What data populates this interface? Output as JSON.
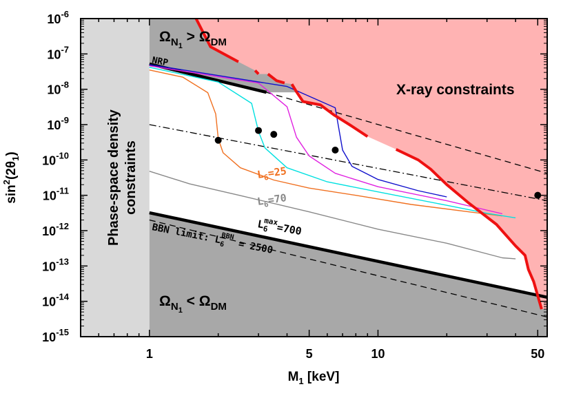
{
  "chart_data": {
    "type": "line",
    "title": "",
    "xlabel": "M",
    "xlabel_sub": "1",
    "xlabel_unit": " [keV]",
    "ylabel_base": "sin",
    "ylabel_sup": "2",
    "ylabel_arg_open": "(2θ",
    "ylabel_arg_sub": "1",
    "ylabel_arg_close": ")",
    "xscale": "log",
    "yscale": "log",
    "xlim": [
      0.5,
      55
    ],
    "ylim": [
      1e-15,
      1e-06
    ],
    "x_ticks": [
      {
        "value": 1,
        "label": "1"
      },
      {
        "value": 5,
        "label": "5"
      },
      {
        "value": 10,
        "label": "10"
      },
      {
        "value": 50,
        "label": "50"
      }
    ],
    "y_ticks": [
      {
        "value": 1e-06,
        "base": "10",
        "exp": "-6"
      },
      {
        "value": 1e-07,
        "base": "10",
        "exp": "-7"
      },
      {
        "value": 1e-08,
        "base": "10",
        "exp": "-8"
      },
      {
        "value": 1e-09,
        "base": "10",
        "exp": "-9"
      },
      {
        "value": 1e-10,
        "base": "10",
        "exp": "-10"
      },
      {
        "value": 1e-11,
        "base": "10",
        "exp": "-11"
      },
      {
        "value": 1e-12,
        "base": "10",
        "exp": "-12"
      },
      {
        "value": 1e-13,
        "base": "10",
        "exp": "-13"
      },
      {
        "value": 1e-14,
        "base": "10",
        "exp": "-14"
      },
      {
        "value": 1e-15,
        "base": "10",
        "exp": "-15"
      }
    ],
    "colors": {
      "xray": "#ffb3b3",
      "xray_edge": "#ee1111",
      "excluded": "#a8a8a8",
      "phase_space": "#d9d9d9",
      "L25": "#f07020",
      "L70": "#888888",
      "cyan": "#00e0e0",
      "magenta": "#e020e0",
      "blue": "#1010cc"
    },
    "regions": {
      "phase_space": {
        "label_line1": "Phase-space density",
        "label_line2": "constraints",
        "x_range": [
          0.5,
          1
        ]
      },
      "overproduction": {
        "label_base": "Ω",
        "label_sub": "N",
        "label_subsub": "1",
        "label_rel": " > ",
        "label_dm_base": "Ω",
        "label_dm_sub": "DM"
      },
      "underproduction": {
        "label_base": "Ω",
        "label_sub": "N",
        "label_subsub": "1",
        "label_rel": " < ",
        "label_dm_base": "Ω",
        "label_dm_sub": "DM"
      },
      "xray": {
        "label": "X-ray constraints",
        "boundary": [
          [
            1.6,
            1e-06
          ],
          [
            1.85,
            1.6e-07
          ],
          [
            2.45,
            6e-08
          ],
          [
            2.9,
            3.4e-08
          ],
          [
            3.0,
            2.7e-08
          ],
          [
            3.3,
            2.7e-08
          ],
          [
            3.6,
            1.75e-08
          ],
          [
            3.9,
            1.5e-08
          ],
          [
            4.2,
            1.4e-08
          ],
          [
            4.4,
            8.5e-09
          ],
          [
            4.7,
            4.5e-09
          ],
          [
            5.6,
            3.6e-09
          ],
          [
            6.4,
            1.9e-09
          ],
          [
            7.5,
            1e-09
          ],
          [
            9.0,
            4.6e-10
          ],
          [
            12.0,
            2e-10
          ],
          [
            15.0,
            1e-10
          ],
          [
            17.0,
            5.5e-11
          ],
          [
            20.0,
            2e-11
          ],
          [
            25.0,
            6e-12
          ],
          [
            33.0,
            1.5e-12
          ],
          [
            40.0,
            3.7e-13
          ],
          [
            44.0,
            2e-13
          ],
          [
            45.5,
            8e-14
          ],
          [
            48.0,
            3.6e-14
          ],
          [
            52.0,
            6e-15
          ],
          [
            55.0,
            6e-15
          ],
          [
            55.0,
            1e-06
          ]
        ]
      },
      "upper_boundary": {
        "label": "NRP",
        "start": [
          1,
          5.2e-08
        ],
        "end": [
          3.25,
          8.2e-09
        ]
      },
      "lower_boundary": {
        "start": [
          1,
          3.2e-12
        ],
        "end": [
          55,
          1.3e-14
        ]
      }
    },
    "series": [
      {
        "name": "L6=25",
        "label_base": "L",
        "label_sub": "6",
        "label_val": "=25",
        "color": "#f07020",
        "values": [
          [
            1,
            3.5e-08
          ],
          [
            1.4,
            2.2e-08
          ],
          [
            1.8,
            8e-09
          ],
          [
            1.95,
            2e-09
          ],
          [
            2.0,
            4e-10
          ],
          [
            2.1,
            1.6e-10
          ],
          [
            2.5,
            6e-11
          ],
          [
            3.5,
            2.7e-11
          ],
          [
            5,
            1.6e-11
          ],
          [
            8,
            1e-11
          ],
          [
            14,
            5.5e-12
          ],
          [
            25,
            3.4e-12
          ],
          [
            35,
            2.6e-12
          ]
        ]
      },
      {
        "name": "cyan",
        "color": "#00e0e0",
        "values": [
          [
            1,
            4.2e-08
          ],
          [
            2,
            1.6e-08
          ],
          [
            2.8,
            4e-09
          ],
          [
            3.0,
            6.4e-10
          ],
          [
            3.2,
            2.2e-10
          ],
          [
            4,
            6e-11
          ],
          [
            6,
            2.4e-11
          ],
          [
            10,
            1.25e-11
          ],
          [
            20,
            5.2e-12
          ],
          [
            30,
            3.1e-12
          ],
          [
            40,
            2.3e-12
          ]
        ]
      },
      {
        "name": "magenta",
        "color": "#e020e0",
        "values": [
          [
            1,
            4.6e-08
          ],
          [
            3,
            1.5e-08
          ],
          [
            4.0,
            3.2e-09
          ],
          [
            4.4,
            4.4e-10
          ],
          [
            5.0,
            1.3e-10
          ],
          [
            6.5,
            4.2e-11
          ],
          [
            10,
            1.75e-11
          ],
          [
            20,
            7e-12
          ],
          [
            35,
            3e-12
          ]
        ]
      },
      {
        "name": "blue",
        "color": "#1010cc",
        "values": [
          [
            1,
            5e-08
          ],
          [
            4,
            1.2e-08
          ],
          [
            6.5,
            3e-09
          ],
          [
            7.0,
            1.9e-10
          ],
          [
            7.7,
            6.6e-11
          ],
          [
            10,
            2.8e-11
          ],
          [
            15,
            1.35e-11
          ],
          [
            20,
            9e-12
          ]
        ]
      },
      {
        "name": "L6=70",
        "label_base": "L",
        "label_sub": "6",
        "label_val": "=70",
        "color": "#888888",
        "values": [
          [
            1,
            4.8e-11
          ],
          [
            1.5,
            2.1e-11
          ],
          [
            2.5,
            9.8e-12
          ],
          [
            5,
            3.4e-12
          ],
          [
            10,
            1.1e-12
          ],
          [
            20,
            4.4e-13
          ],
          [
            35,
            1.7e-13
          ],
          [
            40,
            1.6e-13
          ]
        ]
      }
    ],
    "reference_lines": [
      {
        "name": "dash-dot",
        "style": "dashdot",
        "start": [
          1,
          1e-09
        ],
        "end": [
          55,
          7e-12
        ]
      },
      {
        "name": "upper-dashed",
        "style": "dashed",
        "start": [
          3.25,
          8.2e-09
        ],
        "end": [
          55,
          4.2e-11
        ]
      },
      {
        "name": "bbn-limit",
        "style": "dashed",
        "label_prefix": "BBN limit: L",
        "label_sub": "6",
        "label_sup": "BBN",
        "label_val": " = 2500",
        "start": [
          1,
          2e-12
        ],
        "end": [
          55,
          3.6e-15
        ]
      },
      {
        "name": "l6-max",
        "label_base": "L",
        "label_sub": "6",
        "label_sup": "max",
        "label_val": "=700"
      }
    ],
    "points": [
      [
        2.0,
        3.6e-10
      ],
      [
        3.0,
        6.8e-10
      ],
      [
        3.5,
        5.3e-10
      ],
      [
        6.5,
        1.9e-10
      ],
      [
        50,
        1e-11
      ]
    ]
  }
}
